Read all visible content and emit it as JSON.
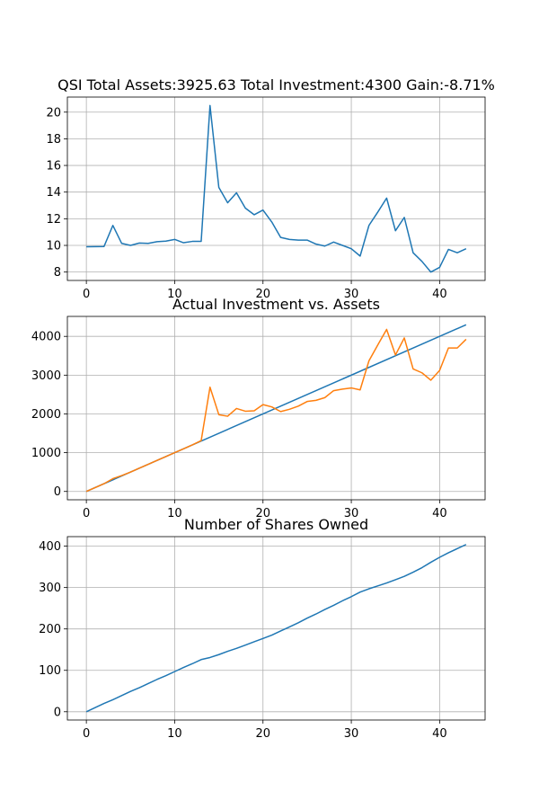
{
  "chart_data": [
    {
      "type": "line",
      "title": "QSI Total Assets:3925.63  Total Investment:4300  Gain:-8.71%",
      "xlabel": "",
      "ylabel": "",
      "xlim": [
        -2.15,
        45.15
      ],
      "ylim": [
        7.37,
        21.13
      ],
      "xticks": [
        0,
        10,
        20,
        30,
        40
      ],
      "yticks": [
        8,
        10,
        12,
        14,
        16,
        18,
        20
      ],
      "grid": true,
      "series": [
        {
          "color": "#1f77b4",
          "x": [
            0,
            1,
            2,
            3,
            4,
            5,
            6,
            7,
            8,
            9,
            10,
            11,
            12,
            13,
            14,
            15,
            16,
            17,
            18,
            19,
            20,
            21,
            22,
            23,
            24,
            25,
            26,
            27,
            28,
            29,
            30,
            31,
            32,
            33,
            34,
            35,
            36,
            37,
            38,
            39,
            40,
            41,
            42,
            43
          ],
          "y": [
            9.9,
            9.91,
            9.92,
            11.5,
            10.15,
            10.0,
            10.18,
            10.15,
            10.28,
            10.32,
            10.45,
            10.2,
            10.3,
            10.3,
            20.5,
            14.35,
            13.2,
            13.95,
            12.8,
            12.3,
            12.65,
            11.75,
            10.6,
            10.45,
            10.4,
            10.4,
            10.1,
            9.95,
            10.25,
            10.0,
            9.75,
            9.2,
            11.5,
            12.5,
            13.55,
            11.1,
            12.1,
            9.45,
            8.8,
            8.0,
            8.35,
            9.7,
            9.45,
            9.75
          ]
        }
      ]
    },
    {
      "type": "line",
      "title": "Actual Investment vs. Assets",
      "xlabel": "",
      "ylabel": "",
      "xlim": [
        -2.15,
        45.15
      ],
      "ylim": [
        -215,
        4515
      ],
      "xticks": [
        0,
        10,
        20,
        30,
        40
      ],
      "yticks": [
        0,
        1000,
        2000,
        3000,
        4000
      ],
      "grid": true,
      "series": [
        {
          "color": "#1f77b4",
          "x": [
            0,
            43
          ],
          "y": [
            0,
            4300
          ]
        },
        {
          "color": "#ff7f0e",
          "x": [
            0,
            1,
            2,
            3,
            4,
            5,
            6,
            7,
            8,
            9,
            10,
            11,
            12,
            13,
            14,
            15,
            16,
            17,
            18,
            19,
            20,
            21,
            22,
            23,
            24,
            25,
            26,
            27,
            28,
            29,
            30,
            31,
            32,
            33,
            34,
            35,
            36,
            37,
            38,
            39,
            40,
            41,
            42,
            43
          ],
          "y": [
            0,
            100,
            200,
            330,
            410,
            500,
            600,
            700,
            800,
            900,
            1000,
            1100,
            1200,
            1310,
            2690,
            1980,
            1940,
            2140,
            2070,
            2080,
            2240,
            2180,
            2060,
            2120,
            2200,
            2320,
            2350,
            2420,
            2600,
            2640,
            2670,
            2620,
            3370,
            3780,
            4180,
            3520,
            3960,
            3160,
            3060,
            2870,
            3120,
            3700,
            3700,
            3925
          ]
        }
      ]
    },
    {
      "type": "line",
      "title": "Number of Shares Owned",
      "xlabel": "",
      "ylabel": "",
      "xlim": [
        -2.15,
        45.15
      ],
      "ylim": [
        -20,
        423
      ],
      "xticks": [
        0,
        10,
        20,
        30,
        40
      ],
      "yticks": [
        0,
        100,
        200,
        300,
        400
      ],
      "grid": true,
      "series": [
        {
          "color": "#1f77b4",
          "x": [
            0,
            1,
            2,
            3,
            4,
            5,
            6,
            7,
            8,
            9,
            10,
            11,
            12,
            13,
            14,
            15,
            16,
            17,
            18,
            19,
            20,
            21,
            22,
            23,
            24,
            25,
            26,
            27,
            28,
            29,
            30,
            31,
            32,
            33,
            34,
            35,
            36,
            37,
            38,
            39,
            40,
            41,
            42,
            43
          ],
          "y": [
            0,
            10,
            20,
            29,
            39,
            49,
            58,
            68,
            78,
            87,
            97,
            107,
            116,
            126,
            131,
            138,
            146,
            153,
            161,
            169,
            177,
            185,
            195,
            205,
            215,
            226,
            236,
            247,
            257,
            268,
            278,
            289,
            297,
            304,
            311,
            319,
            327,
            337,
            348,
            361,
            373,
            384,
            394,
            404
          ]
        }
      ]
    }
  ]
}
